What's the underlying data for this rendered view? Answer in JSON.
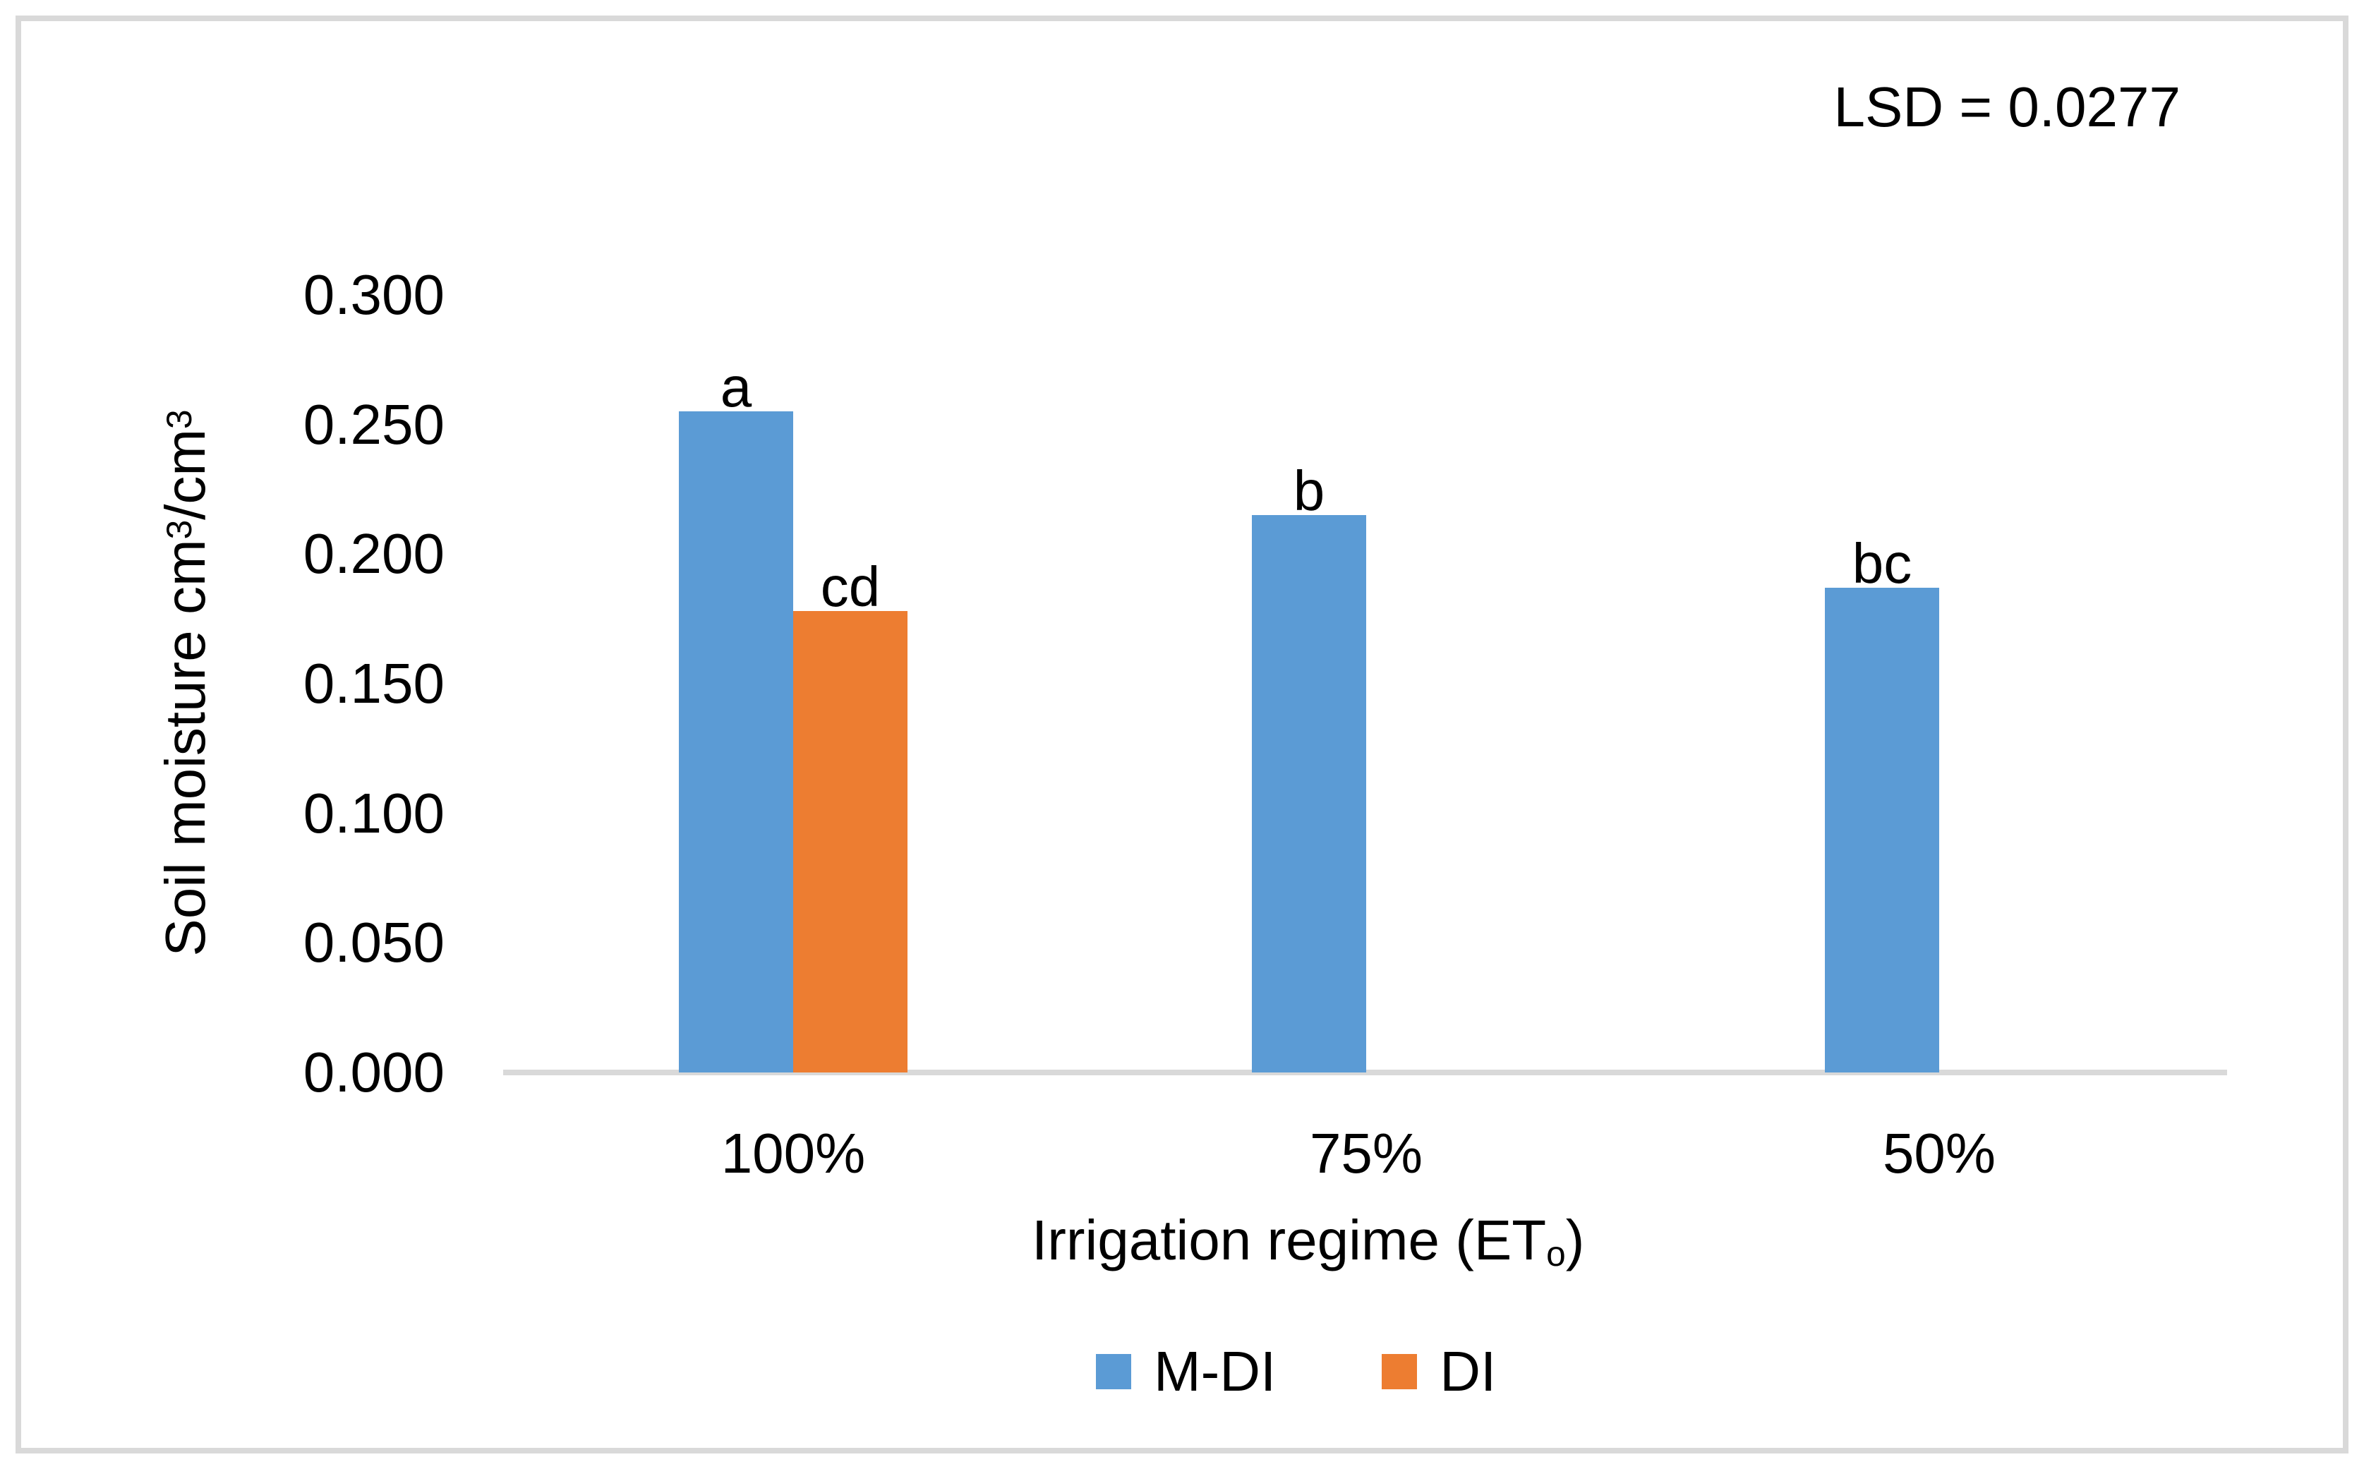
{
  "annotation": {
    "lsd_label": "LSD = 0.0277"
  },
  "axes": {
    "y_title": {
      "p1": "Soil moisture cm",
      "sup1": "3",
      "p2": "/cm",
      "sup2": "3"
    },
    "x_title": {
      "p1": "Irrigation regime (ET",
      "sub": "o",
      "p2": ")"
    }
  },
  "legend": {
    "items": [
      {
        "label": "M-DI",
        "color": "#5B9BD5"
      },
      {
        "label": "DI",
        "color": "#ED7D31"
      }
    ]
  },
  "chart_data": {
    "type": "bar",
    "categories": [
      "100%",
      "75%",
      "50%"
    ],
    "series": [
      {
        "name": "M-DI",
        "color": "#5B9BD5",
        "values": [
          0.255,
          0.215,
          0.187
        ],
        "sig_labels": [
          "a",
          "b",
          "bc"
        ]
      },
      {
        "name": "DI",
        "color": "#ED7D31",
        "values": [
          0.178,
          null,
          null
        ],
        "sig_labels": [
          "cd",
          null,
          null
        ]
      }
    ],
    "title": "",
    "xlabel": "Irrigation regime (ETo)",
    "ylabel": "Soil moisture cm3/cm3",
    "ylim": [
      0,
      0.3
    ],
    "ytick_step": 0.05,
    "ytick_decimals": 3,
    "grid": false,
    "legend_position": "bottom",
    "annotation": "LSD = 0.0277"
  },
  "colors": {
    "axis_line": "#D9D9D9",
    "frame_border": "#D9D9D9",
    "text": "#000000",
    "background": "#FFFFFF"
  }
}
